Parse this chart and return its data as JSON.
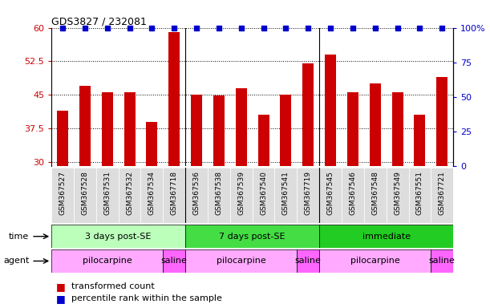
{
  "title": "GDS3827 / 232081",
  "samples": [
    "GSM367527",
    "GSM367528",
    "GSM367531",
    "GSM367532",
    "GSM367534",
    "GSM367718",
    "GSM367536",
    "GSM367538",
    "GSM367539",
    "GSM367540",
    "GSM367541",
    "GSM367719",
    "GSM367545",
    "GSM367546",
    "GSM367548",
    "GSM367549",
    "GSM367551",
    "GSM367721"
  ],
  "red_values": [
    41.5,
    47.0,
    45.5,
    45.5,
    39.0,
    59.0,
    45.0,
    44.8,
    46.5,
    40.5,
    45.0,
    52.0,
    54.0,
    45.5,
    47.5,
    45.5,
    40.5,
    49.0
  ],
  "blue_values": [
    100,
    100,
    100,
    100,
    100,
    100,
    100,
    100,
    100,
    100,
    100,
    100,
    100,
    100,
    100,
    100,
    100,
    100
  ],
  "ymin": 29,
  "ymax": 60,
  "yticks_left": [
    30,
    37.5,
    45,
    52.5,
    60
  ],
  "yticks_right": [
    0,
    25,
    50,
    75,
    100
  ],
  "bar_color": "#cc0000",
  "dot_color": "#0000cc",
  "tick_label_color_left": "#cc0000",
  "tick_label_color_right": "#0000cc",
  "time_groups": [
    {
      "label": "3 days post-SE",
      "start": 0,
      "end": 5,
      "color": "#bbffbb"
    },
    {
      "label": "7 days post-SE",
      "start": 6,
      "end": 11,
      "color": "#44dd44"
    },
    {
      "label": "immediate",
      "start": 12,
      "end": 17,
      "color": "#22cc22"
    }
  ],
  "agent_groups": [
    {
      "label": "pilocarpine",
      "start": 0,
      "end": 4,
      "color": "#ffaaff"
    },
    {
      "label": "saline",
      "start": 5,
      "end": 5,
      "color": "#ff66ff"
    },
    {
      "label": "pilocarpine",
      "start": 6,
      "end": 10,
      "color": "#ffaaff"
    },
    {
      "label": "saline",
      "start": 11,
      "end": 11,
      "color": "#ff66ff"
    },
    {
      "label": "pilocarpine",
      "start": 12,
      "end": 16,
      "color": "#ffaaff"
    },
    {
      "label": "saline",
      "start": 17,
      "end": 17,
      "color": "#ff66ff"
    }
  ],
  "legend_red": "transformed count",
  "legend_blue": "percentile rank within the sample",
  "xlabel_bg": "#dddddd",
  "group_separators": [
    5.5,
    11.5
  ],
  "n_samples": 18
}
